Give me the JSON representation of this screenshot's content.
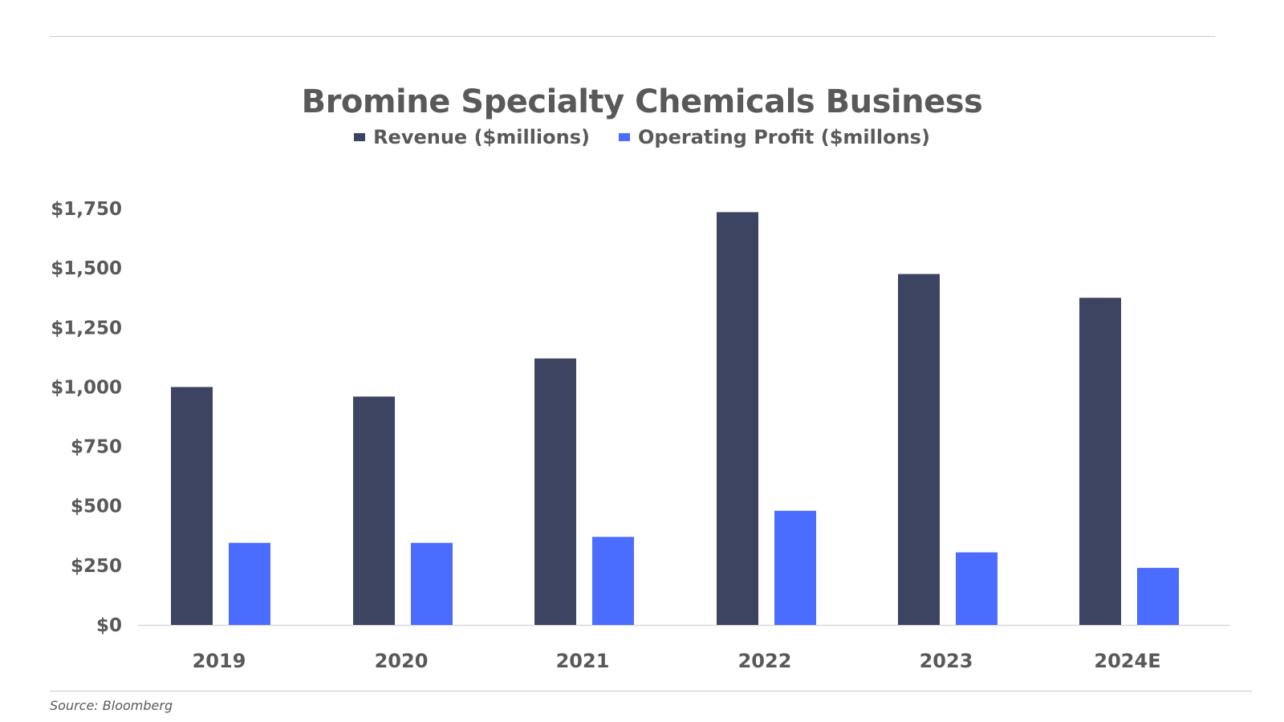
{
  "chart_data": {
    "type": "bar",
    "title": "Bromine Specialty Chemicals Business",
    "categories": [
      "2019",
      "2020",
      "2021",
      "2022",
      "2023",
      "2024E"
    ],
    "series": [
      {
        "name": "Revenue ($millions)",
        "color": "#3d4462",
        "values": [
          1000,
          960,
          1120,
          1735,
          1475,
          1375
        ]
      },
      {
        "name": "Operating Profit ($millons)",
        "color": "#4a6cff",
        "values": [
          345,
          345,
          370,
          480,
          305,
          240
        ]
      }
    ],
    "ylim": [
      0,
      1750
    ],
    "yticks": [
      0,
      250,
      500,
      750,
      1000,
      1250,
      1500,
      1750
    ],
    "ytick_labels": [
      "$0",
      "$250",
      "$500",
      "$750",
      "$1,000",
      "$1,250",
      "$1,500",
      "$1,750"
    ],
    "xlabel": "",
    "ylabel": "",
    "grid": false,
    "legend": "top-center"
  },
  "source": "Source: Bloomberg"
}
